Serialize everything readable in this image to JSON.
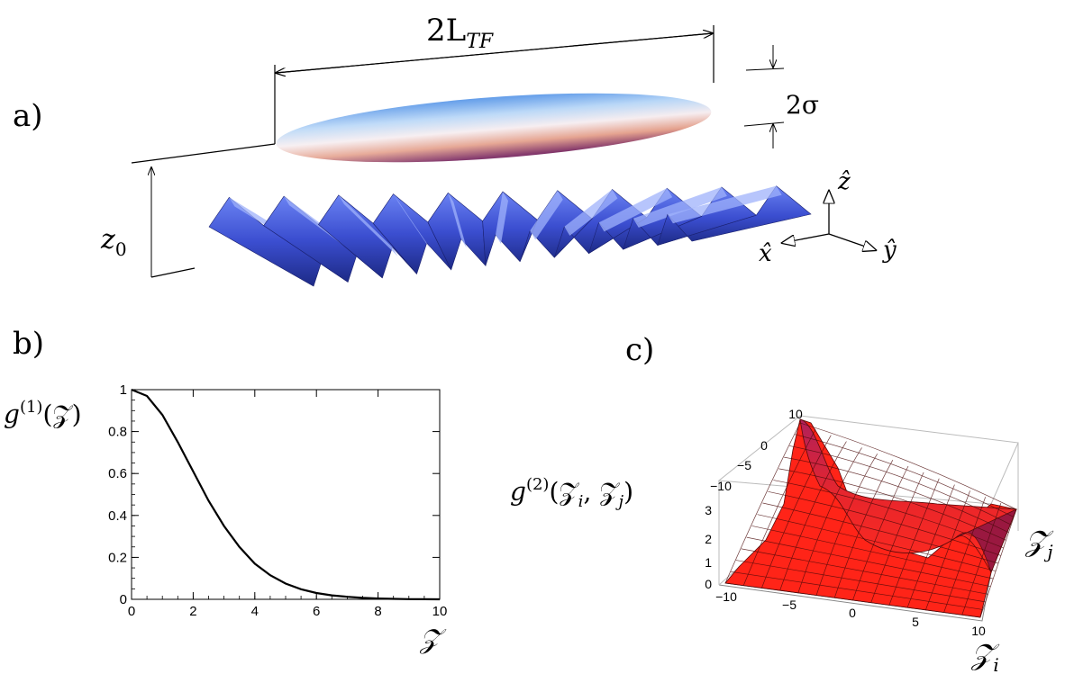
{
  "panels": {
    "a": {
      "label": "a)",
      "dim_length": "2L",
      "dim_length_sub": "TF",
      "dim_width": "2σ",
      "height_label": "z",
      "height_sub": "0",
      "axes": {
        "z": "ẑ",
        "x": "x̂",
        "y": "ŷ"
      },
      "colors": {
        "cloud_top": "#5aa0ee",
        "cloud_mid": "#f4ecf0",
        "cloud_bottom": "#8a3566",
        "lattice": "#3f52d4"
      }
    },
    "b": {
      "label": "b)"
    },
    "c": {
      "label": "c)"
    }
  },
  "chart_data": [
    {
      "type": "line",
      "panel": "b",
      "ylabel_base": "g",
      "ylabel_sup": "(1)",
      "ylabel_arg": "(𝒵)",
      "xlabel": "𝒵",
      "xlim": [
        0,
        10
      ],
      "ylim": [
        0,
        1
      ],
      "xticks": [
        0,
        2,
        4,
        6,
        8,
        10
      ],
      "yticks": [
        0,
        0.2,
        0.4,
        0.6,
        0.8,
        1
      ],
      "series": [
        {
          "x": [
            0,
            0.5,
            1,
            1.5,
            2,
            2.5,
            3,
            3.5,
            4,
            4.5,
            5,
            5.5,
            6,
            6.5,
            7,
            7.5,
            8,
            8.5,
            9,
            9.5,
            10
          ],
          "y": [
            1,
            0.97,
            0.88,
            0.75,
            0.61,
            0.47,
            0.35,
            0.25,
            0.17,
            0.115,
            0.075,
            0.048,
            0.03,
            0.019,
            0.012,
            0.007,
            0.004,
            0.002,
            0.001,
            0.0005,
            0.0002
          ]
        }
      ]
    },
    {
      "type": "surface",
      "panel": "c",
      "zlabel_base": "g",
      "zlabel_sup": "(2)",
      "zlabel_arg": "(𝒵",
      "zlabel_i": "i",
      "zlabel_mid": ", 𝒵",
      "zlabel_j": "j",
      "zlabel_end": ")",
      "xlabel": "𝒵",
      "xlabel_sub": "i",
      "ylabel": "𝒵",
      "ylabel_sub": "j",
      "xticks": [
        "−10",
        "−5",
        "0",
        "5",
        "10"
      ],
      "yticks": [
        "10",
        "0",
        "−5",
        "−10"
      ],
      "zticks": [
        "0",
        "1",
        "2",
        "3"
      ],
      "color": "#ee1c1c"
    }
  ]
}
